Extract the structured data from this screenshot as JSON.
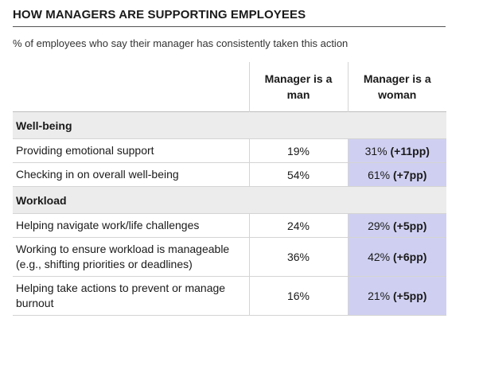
{
  "title": "HOW MANAGERS ARE SUPPORTING EMPLOYEES",
  "subtitle": "% of employees who say their manager has consistently taken this action",
  "colors": {
    "highlight": "#cfd0f1",
    "section_bg": "#ececec",
    "rule": "#555555"
  },
  "chart_data": {
    "type": "table",
    "columns": [
      "Manager is a man",
      "Manager is a woman"
    ],
    "sections": [
      {
        "name": "Well-being",
        "rows": [
          {
            "label": "Providing emotional support",
            "man": "19%",
            "woman": "31%",
            "diff": "(+11pp)"
          },
          {
            "label": "Checking in on overall well-being",
            "man": "54%",
            "woman": "61%",
            "diff": "(+7pp)"
          }
        ]
      },
      {
        "name": "Workload",
        "rows": [
          {
            "label": "Helping navigate work/life challenges",
            "man": "24%",
            "woman": "29%",
            "diff": "(+5pp)"
          },
          {
            "label": "Working to ensure workload is manageable (e.g., shifting priorities or deadlines)",
            "man": "36%",
            "woman": "42%",
            "diff": "(+6pp)"
          },
          {
            "label": "Helping take actions to prevent or manage burnout",
            "man": "16%",
            "woman": "21%",
            "diff": "(+5pp)"
          }
        ]
      }
    ]
  }
}
